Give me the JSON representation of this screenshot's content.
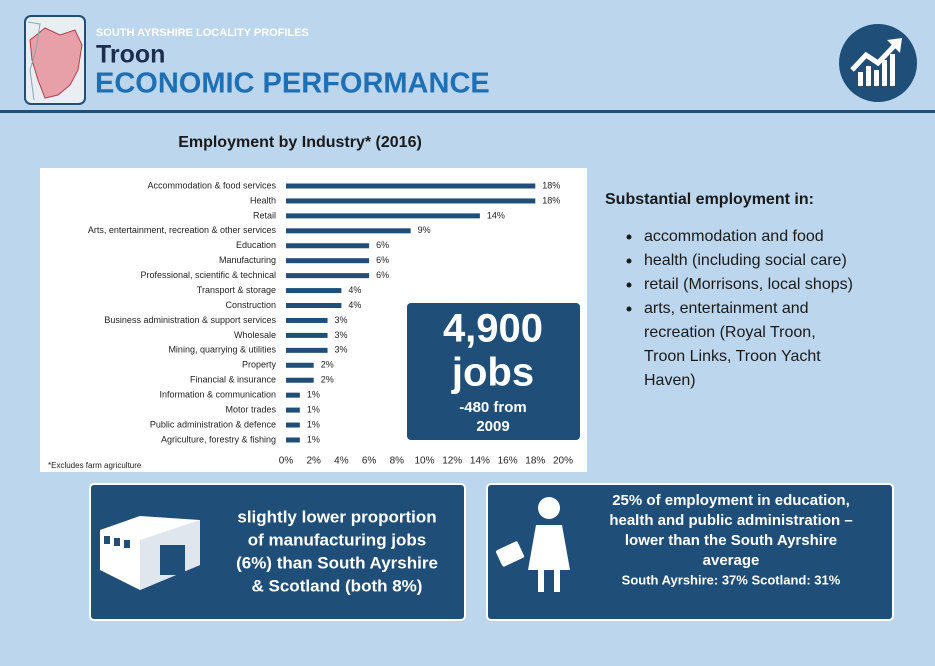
{
  "header": {
    "kicker": "SOUTH AYRSHIRE LOCALITY PROFILES",
    "place": "Troon",
    "title": "ECONOMIC PERFORMANCE"
  },
  "chart_data": {
    "type": "bar",
    "orientation": "horizontal",
    "title": "Employment by Industry* (2016)",
    "categories": [
      "Accommodation & food services",
      "Health",
      "Retail",
      "Arts, entertainment, recreation & other services",
      "Education",
      "Manufacturing",
      "Professional, scientific & technical",
      "Transport & storage",
      "Construction",
      "Business administration & support services",
      "Wholesale",
      "Mining, quarrying & utilities",
      "Property",
      "Financial & insurance",
      "Information & communication",
      "Motor trades",
      "Public administration & defence",
      "Agriculture, forestry & fishing"
    ],
    "values": [
      18,
      18,
      14,
      9,
      6,
      6,
      6,
      4,
      4,
      3,
      3,
      3,
      2,
      2,
      1,
      1,
      1,
      1
    ],
    "value_labels": [
      "18%",
      "18%",
      "14%",
      "9%",
      "6%",
      "6%",
      "6%",
      "4%",
      "4%",
      "3%",
      "3%",
      "3%",
      "2%",
      "2%",
      "1%",
      "1%",
      "1%",
      "1%"
    ],
    "color": "#1f4e79",
    "xlim": [
      0,
      20
    ],
    "xticks": [
      {
        "value": 0,
        "label": "0%"
      },
      {
        "value": 2,
        "label": "2%"
      },
      {
        "value": 4,
        "label": "4%"
      },
      {
        "value": 6,
        "label": "6%"
      },
      {
        "value": 8,
        "label": "8%"
      },
      {
        "value": 10,
        "label": "10%"
      },
      {
        "value": 12,
        "label": "12%"
      },
      {
        "value": 14,
        "label": "14%"
      },
      {
        "value": 16,
        "label": "16%"
      },
      {
        "value": 18,
        "label": "18%"
      },
      {
        "value": 20,
        "label": "20%"
      }
    ],
    "note": "*Excludes farm agriculture"
  },
  "highlight": {
    "number": "4,900",
    "unit": "jobs",
    "change": [
      "-480 from",
      "2009"
    ]
  },
  "summary": {
    "heading": "Substantial employment in:",
    "bullets": [
      [
        "accommodation and food"
      ],
      [
        "health (including social care)"
      ],
      [
        "retail (Morrisons, local shops)"
      ],
      [
        "arts, entertainment and",
        "recreation (Royal Troon,",
        "Troon Links, Troon Yacht",
        "Haven)"
      ]
    ]
  },
  "callouts": [
    {
      "lines": [
        "slightly lower  proportion",
        "of manufacturing jobs",
        "(6%) than South Ayrshire",
        "& Scotland (both 8%)"
      ]
    },
    {
      "lines": [
        "25% of employment in education,",
        "health and public administration –",
        "lower than the South Ayrshire",
        "average"
      ],
      "sub": "South Ayrshire: 37%  Scotland: 31%"
    }
  ]
}
